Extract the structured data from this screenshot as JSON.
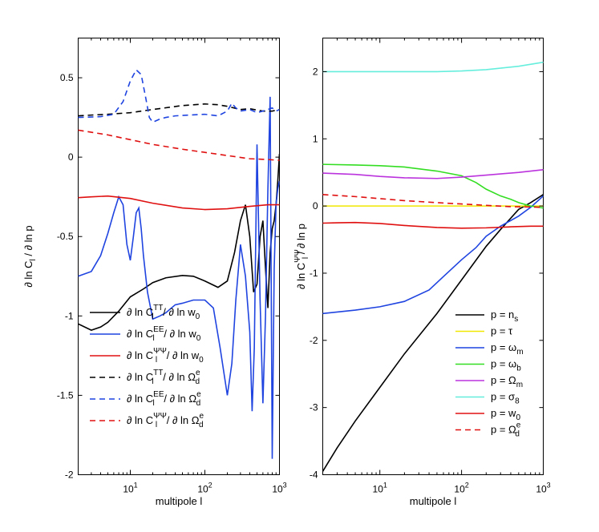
{
  "chart_data": [
    {
      "type": "line",
      "panel": "left",
      "xscale": "log",
      "xlim": [
        2,
        1000
      ],
      "ylim": [
        -2,
        0.75
      ],
      "xlabel": "multipole  l",
      "ylabel": "∂ ln C_l / ∂ ln p",
      "ylabel_parts": {
        "pre": "∂ ln C",
        "sub": "l",
        "post": " / ∂ ln p"
      },
      "yticks": [
        0.5,
        0,
        -0.5,
        -1,
        -1.5,
        -2
      ],
      "ytick_labels": [
        "0.5",
        "0",
        "-0.5",
        "-1",
        "-1.5",
        "-2"
      ],
      "xticks": [
        10,
        100,
        1000
      ],
      "xtick_labels": [
        {
          "base": "10",
          "exp": "1"
        },
        {
          "base": "10",
          "exp": "2"
        },
        {
          "base": "10",
          "exp": "3"
        }
      ],
      "legend_position": "bottom-left",
      "series": [
        {
          "name": "∂ ln C_l^TT / ∂ ln w_0",
          "label": {
            "a": "∂ ln C",
            "sub": "l",
            "sup": "TT",
            "b": " / ∂ ln w",
            "sub2": "0",
            "sup2": ""
          },
          "color": "#000000",
          "dash": "solid",
          "x": [
            2,
            3,
            4,
            5,
            7,
            10,
            15,
            20,
            30,
            50,
            70,
            100,
            150,
            200,
            250,
            300,
            350,
            400,
            450,
            500,
            550,
            600,
            650,
            700,
            750,
            800,
            850,
            900,
            950,
            1000
          ],
          "y": [
            -1.05,
            -1.09,
            -1.07,
            -1.04,
            -0.97,
            -0.88,
            -0.83,
            -0.79,
            -0.76,
            -0.745,
            -0.75,
            -0.78,
            -0.82,
            -0.78,
            -0.6,
            -0.4,
            -0.3,
            -0.5,
            -0.85,
            -0.8,
            -0.5,
            -0.4,
            -0.7,
            -0.95,
            -0.6,
            -0.45,
            -0.4,
            -0.3,
            -0.15,
            0.02
          ]
        },
        {
          "name": "∂ ln C_l^EE / ∂ ln w_0",
          "label": {
            "a": "∂ ln C",
            "sub": "l",
            "sup": "EE",
            "b": " / ∂ ln w",
            "sub2": "0",
            "sup2": ""
          },
          "color": "#1f44e0",
          "dash": "solid",
          "x": [
            2,
            3,
            4,
            5,
            6,
            7,
            8,
            9,
            10,
            11,
            12,
            13,
            14,
            15,
            17,
            20,
            25,
            30,
            40,
            50,
            70,
            100,
            130,
            160,
            200,
            230,
            260,
            300,
            350,
            400,
            430,
            460,
            500,
            550,
            600,
            650,
            700,
            750,
            800,
            850,
            900,
            950,
            1000
          ],
          "y": [
            -0.75,
            -0.72,
            -0.62,
            -0.48,
            -0.35,
            -0.25,
            -0.3,
            -0.55,
            -0.65,
            -0.5,
            -0.35,
            -0.32,
            -0.45,
            -0.62,
            -0.85,
            -1.02,
            -1.0,
            -0.98,
            -0.93,
            -0.92,
            -0.9,
            -0.9,
            -0.95,
            -1.2,
            -1.5,
            -1.3,
            -0.9,
            -0.55,
            -0.75,
            -1.1,
            -1.6,
            -1.2,
            0.08,
            -0.9,
            -1.55,
            -1.0,
            -0.2,
            0.38,
            -1.9,
            -0.7,
            -0.3,
            -0.2,
            -0.15
          ]
        },
        {
          "name": "∂ ln C_l^ΨΨ / ∂ ln w_0",
          "label": {
            "a": "∂ ln C",
            "sub": "l",
            "sup": "ΨΨ",
            "b": " / ∂ ln w",
            "sub2": "0",
            "sup2": ""
          },
          "color": "#e01010",
          "dash": "solid",
          "x": [
            2,
            3,
            5,
            10,
            20,
            50,
            100,
            200,
            400,
            700,
            1000
          ],
          "y": [
            -0.255,
            -0.25,
            -0.245,
            -0.26,
            -0.29,
            -0.32,
            -0.33,
            -0.325,
            -0.31,
            -0.3,
            -0.3
          ]
        },
        {
          "name": "∂ ln C_l^TT / ∂ ln Ω_d^e",
          "label": {
            "a": "∂ ln C",
            "sub": "l",
            "sup": "TT",
            "b": " / ∂ ln Ω",
            "sub2": "d",
            "sup2": "e"
          },
          "color": "#000000",
          "dash": "dashed",
          "x": [
            2,
            3,
            5,
            10,
            20,
            50,
            100,
            150,
            200,
            300,
            400,
            600,
            800,
            1000
          ],
          "y": [
            0.26,
            0.265,
            0.27,
            0.28,
            0.3,
            0.325,
            0.335,
            0.33,
            0.32,
            0.3,
            0.305,
            0.29,
            0.29,
            0.3
          ]
        },
        {
          "name": "∂ ln C_l^EE / ∂ ln Ω_d^e",
          "label": {
            "a": "∂ ln C",
            "sub": "l",
            "sup": "EE",
            "b": " / ∂ ln Ω",
            "sub2": "d",
            "sup2": "e"
          },
          "color": "#1f44e0",
          "dash": "dashed",
          "x": [
            2,
            4,
            6,
            8,
            10,
            12,
            14,
            16,
            18,
            20,
            25,
            30,
            40,
            60,
            100,
            150,
            200,
            230,
            260,
            300,
            400,
            500,
            600,
            700,
            800,
            900,
            1000
          ],
          "y": [
            0.25,
            0.255,
            0.27,
            0.35,
            0.48,
            0.55,
            0.52,
            0.38,
            0.25,
            0.22,
            0.24,
            0.25,
            0.26,
            0.265,
            0.27,
            0.26,
            0.29,
            0.34,
            0.31,
            0.29,
            0.3,
            0.28,
            0.29,
            0.3,
            0.31,
            0.29,
            0.3
          ]
        },
        {
          "name": "∂ ln C_l^ΨΨ / ∂ ln Ω_d^e",
          "label": {
            "a": "∂ ln C",
            "sub": "l",
            "sup": "ΨΨ",
            "b": " / ∂ ln Ω",
            "sub2": "d",
            "sup2": "e"
          },
          "color": "#e01010",
          "dash": "dashed",
          "x": [
            2,
            5,
            10,
            20,
            50,
            100,
            200,
            400,
            700,
            1000
          ],
          "y": [
            0.17,
            0.14,
            0.11,
            0.08,
            0.05,
            0.03,
            0.01,
            -0.01,
            -0.015,
            -0.02
          ]
        }
      ]
    },
    {
      "type": "line",
      "panel": "right",
      "xscale": "log",
      "xlim": [
        2,
        1000
      ],
      "ylim": [
        -4,
        2.5
      ],
      "xlabel": "multipole  l",
      "ylabel": "∂ ln C_l^ΨΨ / ∂ ln p",
      "ylabel_parts": {
        "pre": "∂ ln C",
        "sub": "l",
        "sup": "ΨΨ",
        "post": " / ∂ ln p"
      },
      "yticks": [
        2,
        1,
        0,
        -1,
        -2,
        -3,
        -4
      ],
      "ytick_labels": [
        "2",
        "1",
        "0",
        "-1",
        "-2",
        "-3",
        "-4"
      ],
      "xticks": [
        10,
        100,
        1000
      ],
      "xtick_labels": [
        {
          "base": "10",
          "exp": "1"
        },
        {
          "base": "10",
          "exp": "2"
        },
        {
          "base": "10",
          "exp": "3"
        }
      ],
      "legend_position": "bottom-right",
      "series": [
        {
          "name": "p = n_s",
          "label": {
            "a": "p = n",
            "sub": "s",
            "sup": ""
          },
          "color": "#000000",
          "dash": "solid",
          "x": [
            2,
            3,
            5,
            10,
            20,
            50,
            100,
            200,
            300,
            500,
            700,
            1000
          ],
          "y": [
            -3.95,
            -3.6,
            -3.2,
            -2.7,
            -2.2,
            -1.6,
            -1.1,
            -0.6,
            -0.35,
            -0.05,
            0.05,
            0.17
          ]
        },
        {
          "name": "p = τ",
          "label": {
            "a": "p = τ",
            "sub": "",
            "sup": ""
          },
          "color": "#f0e800",
          "dash": "solid",
          "x": [
            2,
            10,
            100,
            1000
          ],
          "y": [
            0.0,
            0.0,
            0.0,
            0.0
          ]
        },
        {
          "name": "p = ω_m",
          "label": {
            "a": "p = ω",
            "sub": "m",
            "sup": ""
          },
          "color": "#1f44e0",
          "dash": "solid",
          "x": [
            2,
            5,
            10,
            20,
            40,
            60,
            100,
            150,
            200,
            300,
            500,
            700,
            1000
          ],
          "y": [
            -1.6,
            -1.55,
            -1.5,
            -1.42,
            -1.25,
            -1.05,
            -0.8,
            -0.62,
            -0.45,
            -0.3,
            -0.15,
            -0.02,
            0.15
          ]
        },
        {
          "name": "p = ω_b",
          "label": {
            "a": "p = ω",
            "sub": "b",
            "sup": ""
          },
          "color": "#33dd22",
          "dash": "solid",
          "x": [
            2,
            5,
            10,
            20,
            50,
            100,
            150,
            200,
            300,
            400,
            500,
            700,
            1000
          ],
          "y": [
            0.62,
            0.61,
            0.6,
            0.58,
            0.52,
            0.45,
            0.35,
            0.25,
            0.15,
            0.1,
            0.05,
            0.0,
            -0.03
          ]
        },
        {
          "name": "p = Ω_m",
          "label": {
            "a": "p = Ω",
            "sub": "m",
            "sup": ""
          },
          "color": "#bb33dd",
          "dash": "solid",
          "x": [
            2,
            5,
            10,
            20,
            50,
            100,
            200,
            500,
            1000
          ],
          "y": [
            0.49,
            0.47,
            0.44,
            0.42,
            0.41,
            0.43,
            0.46,
            0.5,
            0.54
          ]
        },
        {
          "name": "p = σ_8",
          "label": {
            "a": "p = σ",
            "sub": "8",
            "sup": ""
          },
          "color": "#66eedd",
          "dash": "solid",
          "x": [
            2,
            10,
            50,
            100,
            200,
            500,
            1000
          ],
          "y": [
            2.0,
            2.0,
            2.0,
            2.01,
            2.03,
            2.08,
            2.14
          ]
        },
        {
          "name": "p = w_0",
          "label": {
            "a": "p = w",
            "sub": "0",
            "sup": ""
          },
          "color": "#e01010",
          "dash": "solid",
          "x": [
            2,
            3,
            5,
            10,
            20,
            50,
            100,
            200,
            400,
            700,
            1000
          ],
          "y": [
            -0.255,
            -0.25,
            -0.245,
            -0.26,
            -0.29,
            -0.32,
            -0.33,
            -0.325,
            -0.31,
            -0.3,
            -0.3
          ]
        },
        {
          "name": "p = Ω_d^e",
          "label": {
            "a": "p = Ω",
            "sub": "d",
            "sup": "e"
          },
          "color": "#e01010",
          "dash": "dashed",
          "x": [
            2,
            5,
            10,
            20,
            50,
            100,
            200,
            400,
            700,
            1000
          ],
          "y": [
            0.17,
            0.14,
            0.11,
            0.08,
            0.05,
            0.03,
            0.01,
            -0.01,
            -0.015,
            -0.02
          ]
        }
      ]
    }
  ]
}
